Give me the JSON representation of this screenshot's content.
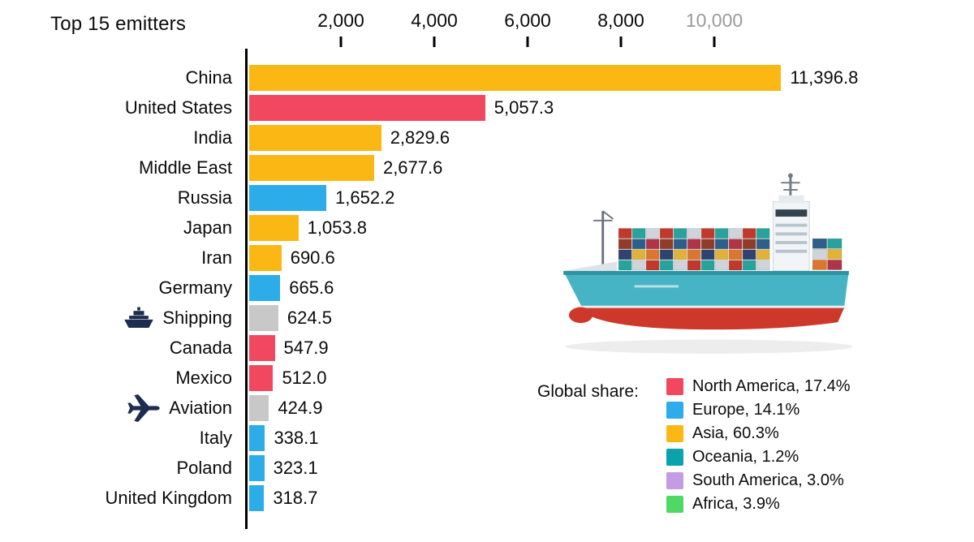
{
  "title": "Top 15 emitters",
  "axis": {
    "ticks": [
      {
        "label": "2,000",
        "value": 2000,
        "muted": false
      },
      {
        "label": "4,000",
        "value": 4000,
        "muted": false
      },
      {
        "label": "6,000",
        "value": 6000,
        "muted": false
      },
      {
        "label": "8,000",
        "value": 8000,
        "muted": false
      },
      {
        "label": "10,000",
        "value": 10000,
        "muted": true
      }
    ]
  },
  "chart_data": {
    "type": "bar",
    "orientation": "horizontal",
    "title": "Top 15 emitters",
    "xlim": [
      0,
      12000
    ],
    "grid": false,
    "categories": [
      "China",
      "United States",
      "India",
      "Middle East",
      "Russia",
      "Japan",
      "Iran",
      "Germany",
      "Shipping",
      "Canada",
      "Mexico",
      "Aviation",
      "Italy",
      "Poland",
      "United Kingdom"
    ],
    "values": [
      11396.8,
      5057.3,
      2829.6,
      2677.6,
      1652.2,
      1053.8,
      690.6,
      665.6,
      624.5,
      547.9,
      512.0,
      424.9,
      338.1,
      323.1,
      318.7
    ],
    "value_labels": [
      "11,396.8",
      "5,057.3",
      "2,829.6",
      "2,677.6",
      "1,652.2",
      "1,053.8",
      "690.6",
      "665.6",
      "624.5",
      "547.9",
      "512.0",
      "424.9",
      "338.1",
      "323.1",
      "318.7"
    ],
    "color_keys": [
      "asia",
      "north_america",
      "asia",
      "asia",
      "europe",
      "asia",
      "asia",
      "europe",
      "sector",
      "north_america",
      "north_america",
      "sector",
      "europe",
      "europe",
      "europe"
    ],
    "icons": {
      "Shipping": "ship-icon",
      "Aviation": "plane-icon"
    },
    "illustration": "container-ship-illustration"
  },
  "colors": {
    "asia": "#FBB713",
    "north_america": "#F2485F",
    "europe": "#2CACE8",
    "sector": "#C8C8C8",
    "oceania": "#0AA3AD",
    "south_america": "#C49CE4",
    "africa": "#4ED964",
    "tick_muted": "#9A9A9A"
  },
  "legend": {
    "label": "Global share:",
    "entries": [
      {
        "text": "North America, 17.4%",
        "color_key": "north_america"
      },
      {
        "text": "Europe, 14.1%",
        "color_key": "europe"
      },
      {
        "text": "Asia, 60.3%",
        "color_key": "asia"
      },
      {
        "text": "Oceania, 1.2%",
        "color_key": "oceania"
      },
      {
        "text": "South America, 3.0%",
        "color_key": "south_america"
      },
      {
        "text": "Africa, 3.9%",
        "color_key": "africa"
      }
    ]
  }
}
